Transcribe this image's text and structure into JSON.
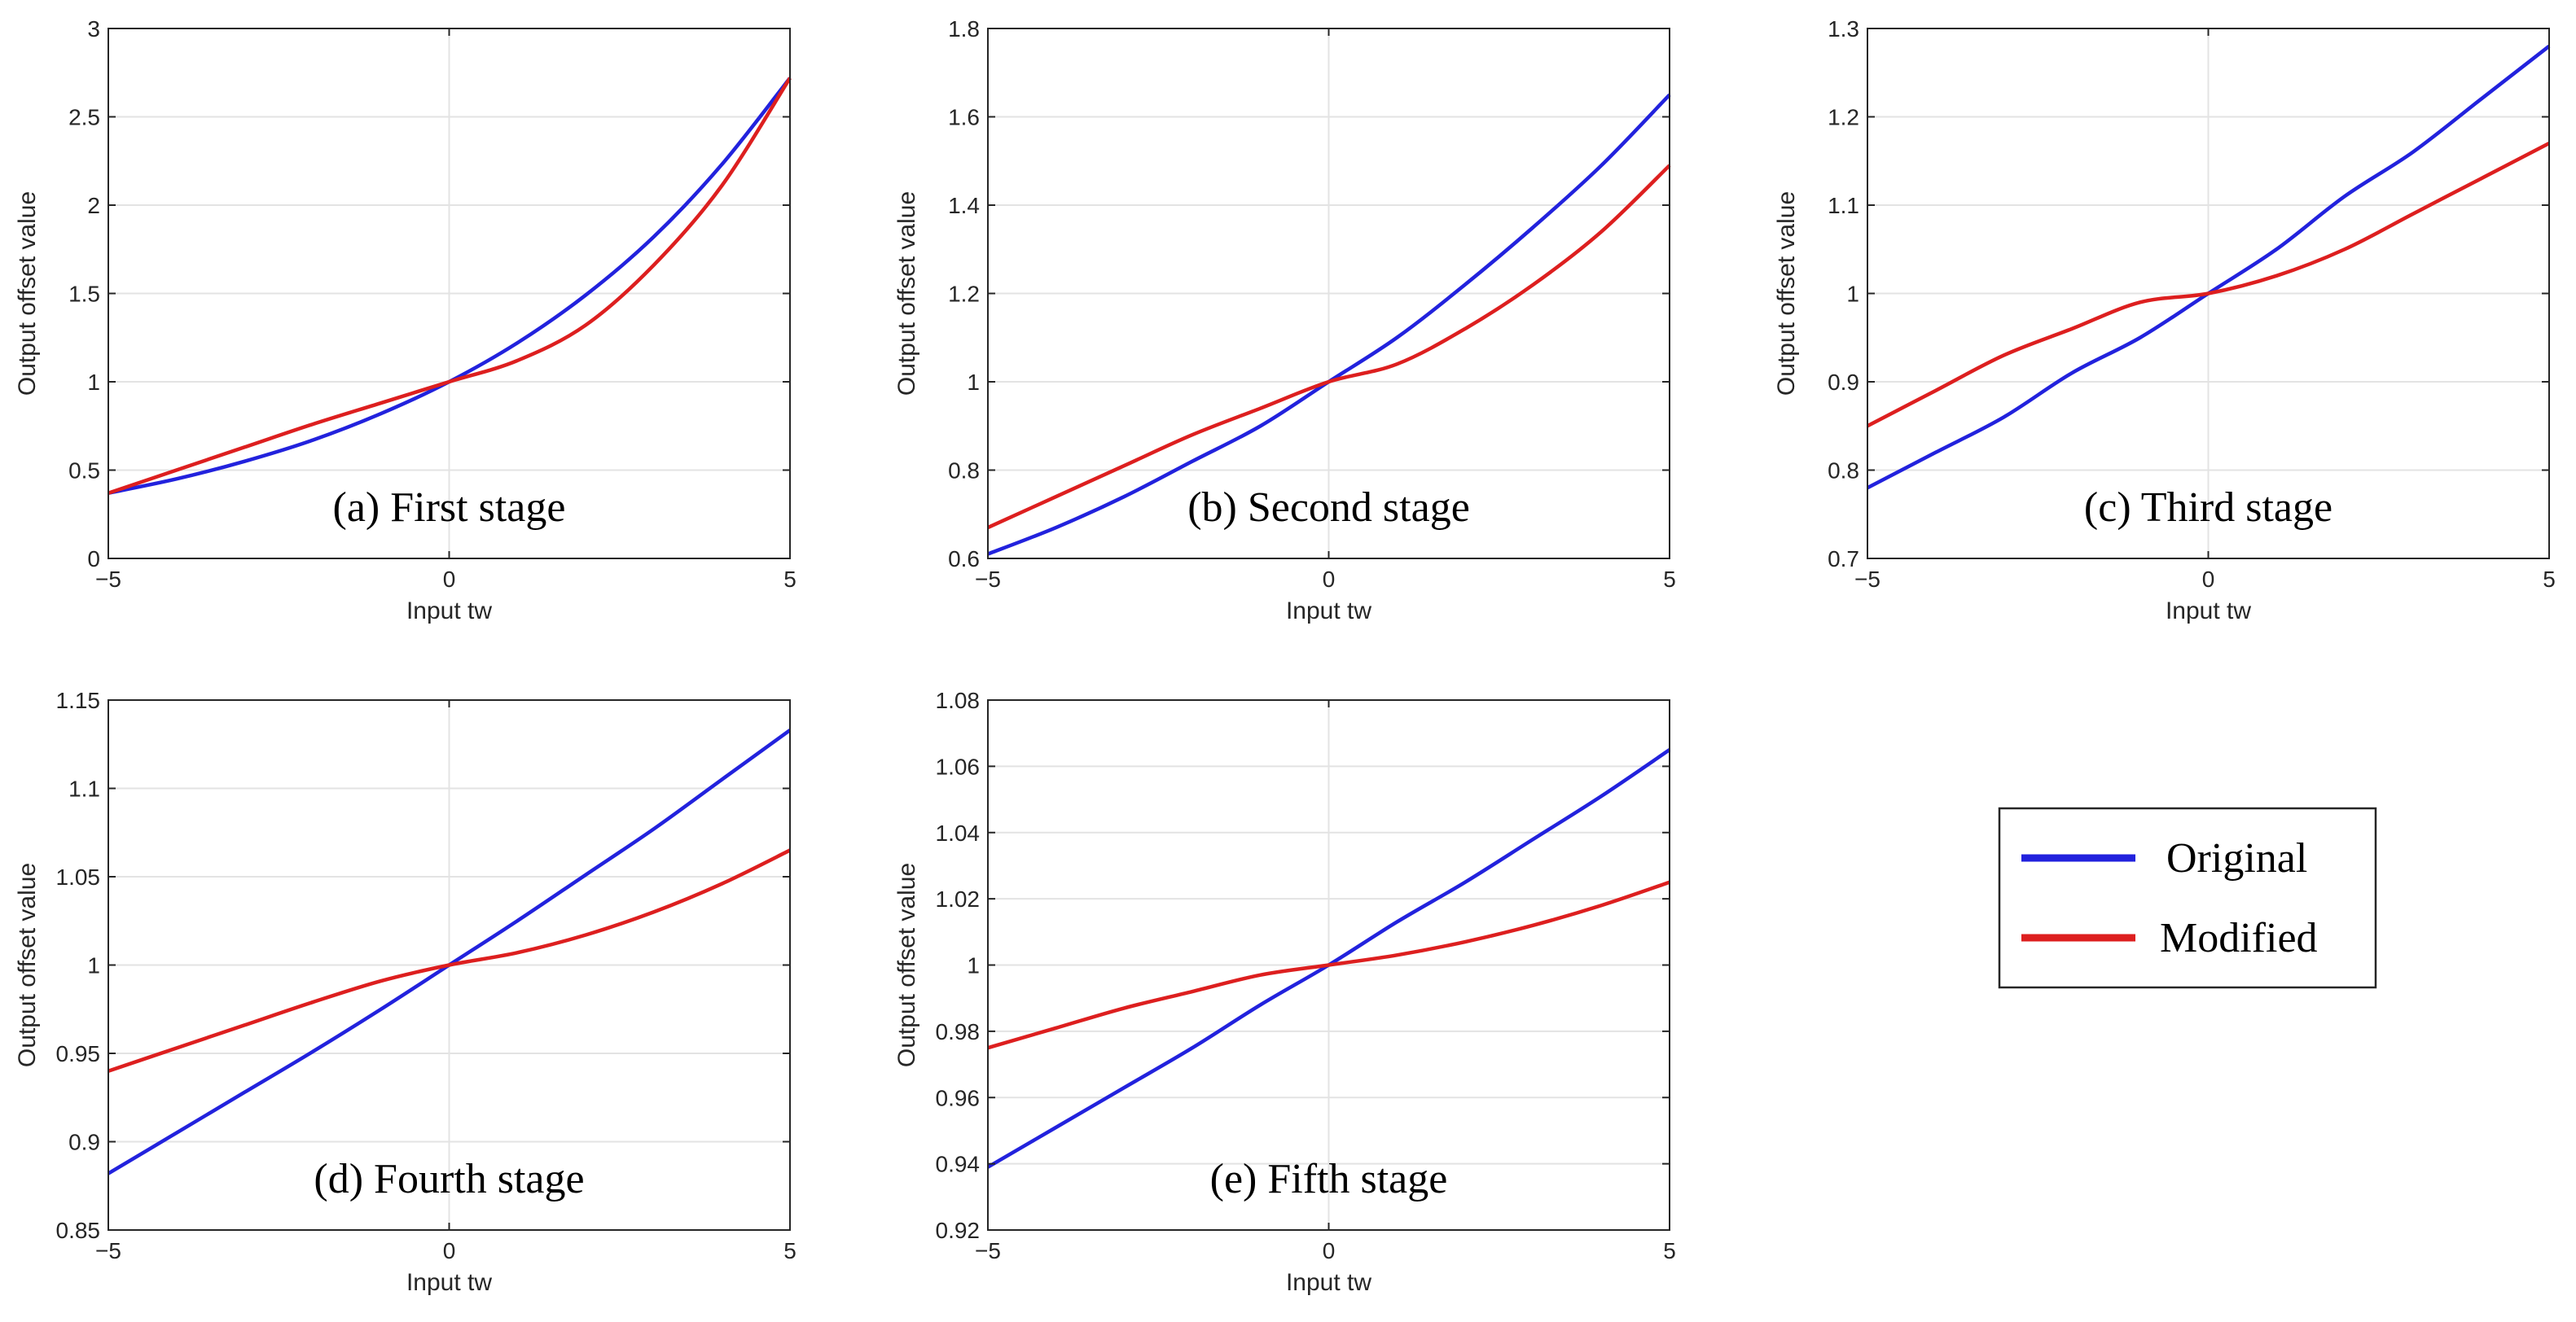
{
  "colors": {
    "original": "#2222dd",
    "modified": "#dd1f1f",
    "grid": "#e3e3e3",
    "axis": "#262626"
  },
  "legend": {
    "entries": [
      {
        "label": "Original",
        "color": "#2222dd"
      },
      {
        "label": "Modified",
        "color": "#dd1f1f"
      }
    ]
  },
  "chart_data": [
    {
      "type": "line",
      "id": "a",
      "title": "(a) First stage",
      "xlabel": "Input tw",
      "ylabel": "Output offset value",
      "xlim": [
        -5,
        5
      ],
      "ylim": [
        0,
        3
      ],
      "grid": true,
      "xticks": [
        -5,
        0,
        5
      ],
      "xtick_labels": [
        "−5",
        "0",
        "5"
      ],
      "yticks": [
        0,
        0.5,
        1,
        1.5,
        2,
        2.5,
        3
      ],
      "ytick_labels": [
        "0",
        "0.5",
        "1",
        "1.5",
        "2",
        "2.5",
        "3"
      ],
      "x": [
        -5,
        -4,
        -3,
        -2,
        -1,
        0,
        1,
        2,
        3,
        4,
        5
      ],
      "series": [
        {
          "name": "Original",
          "values": [
            0.37,
            0.45,
            0.55,
            0.67,
            0.82,
            1.0,
            1.22,
            1.49,
            1.82,
            2.23,
            2.72
          ]
        },
        {
          "name": "Modified",
          "values": [
            0.37,
            0.5,
            0.63,
            0.76,
            0.88,
            1.0,
            1.12,
            1.32,
            1.66,
            2.11,
            2.72
          ]
        }
      ]
    },
    {
      "type": "line",
      "id": "b",
      "title": "(b) Second stage",
      "xlabel": "Input tw",
      "ylabel": "Output offset value",
      "xlim": [
        -5,
        5
      ],
      "ylim": [
        0.6,
        1.8
      ],
      "grid": true,
      "xticks": [
        -5,
        0,
        5
      ],
      "xtick_labels": [
        "−5",
        "0",
        "5"
      ],
      "yticks": [
        0.6,
        0.8,
        1,
        1.2,
        1.4,
        1.6,
        1.8
      ],
      "ytick_labels": [
        "0.6",
        "0.8",
        "1",
        "1.2",
        "1.4",
        "1.6",
        "1.8"
      ],
      "x": [
        -5,
        -4,
        -3,
        -2,
        -1,
        0,
        1,
        2,
        3,
        4,
        5
      ],
      "series": [
        {
          "name": "Original",
          "values": [
            0.61,
            0.67,
            0.74,
            0.82,
            0.9,
            1.0,
            1.1,
            1.22,
            1.35,
            1.49,
            1.65
          ]
        },
        {
          "name": "Modified",
          "values": [
            0.67,
            0.74,
            0.81,
            0.88,
            0.94,
            1.0,
            1.04,
            1.12,
            1.22,
            1.34,
            1.49
          ]
        }
      ]
    },
    {
      "type": "line",
      "id": "c",
      "title": "(c) Third stage",
      "xlabel": "Input tw",
      "ylabel": "Output offset value",
      "xlim": [
        -5,
        5
      ],
      "ylim": [
        0.7,
        1.3
      ],
      "grid": true,
      "xticks": [
        -5,
        0,
        5
      ],
      "xtick_labels": [
        "−5",
        "0",
        "5"
      ],
      "yticks": [
        0.7,
        0.8,
        0.9,
        1,
        1.1,
        1.2,
        1.3
      ],
      "ytick_labels": [
        "0.7",
        "0.8",
        "0.9",
        "1",
        "1.1",
        "1.2",
        "1.3"
      ],
      "x": [
        -5,
        -4,
        -3,
        -2,
        -1,
        0,
        1,
        2,
        3,
        4,
        5
      ],
      "series": [
        {
          "name": "Original",
          "values": [
            0.78,
            0.82,
            0.86,
            0.91,
            0.95,
            1.0,
            1.05,
            1.11,
            1.16,
            1.22,
            1.28
          ]
        },
        {
          "name": "Modified",
          "values": [
            0.85,
            0.89,
            0.93,
            0.96,
            0.99,
            1.0,
            1.02,
            1.05,
            1.09,
            1.13,
            1.17
          ]
        }
      ]
    },
    {
      "type": "line",
      "id": "d",
      "title": "(d) Fourth stage",
      "xlabel": "Input tw",
      "ylabel": "Output offset value",
      "xlim": [
        -5,
        5
      ],
      "ylim": [
        0.85,
        1.15
      ],
      "grid": true,
      "xticks": [
        -5,
        0,
        5
      ],
      "xtick_labels": [
        "−5",
        "0",
        "5"
      ],
      "yticks": [
        0.85,
        0.9,
        0.95,
        1,
        1.05,
        1.1,
        1.15
      ],
      "ytick_labels": [
        "0.85",
        "0.9",
        "0.95",
        "1",
        "1.05",
        "1.1",
        "1.15"
      ],
      "x": [
        -5,
        -4,
        -3,
        -2,
        -1,
        0,
        1,
        2,
        3,
        4,
        5
      ],
      "series": [
        {
          "name": "Original",
          "values": [
            0.882,
            0.905,
            0.928,
            0.951,
            0.975,
            1.0,
            1.025,
            1.051,
            1.077,
            1.105,
            1.133
          ]
        },
        {
          "name": "Modified",
          "values": [
            0.94,
            0.953,
            0.966,
            0.979,
            0.991,
            1.0,
            1.007,
            1.017,
            1.03,
            1.046,
            1.065
          ]
        }
      ]
    },
    {
      "type": "line",
      "id": "e",
      "title": "(e) Fifth stage",
      "xlabel": "Input tw",
      "ylabel": "Output offset value",
      "xlim": [
        -5,
        5
      ],
      "ylim": [
        0.92,
        1.08
      ],
      "grid": true,
      "xticks": [
        -5,
        0,
        5
      ],
      "xtick_labels": [
        "−5",
        "0",
        "5"
      ],
      "yticks": [
        0.92,
        0.94,
        0.96,
        0.98,
        1,
        1.02,
        1.04,
        1.06,
        1.08
      ],
      "ytick_labels": [
        "0.92",
        "0.94",
        "0.96",
        "0.98",
        "1",
        "1.02",
        "1.04",
        "1.06",
        "1.08"
      ],
      "x": [
        -5,
        -4,
        -3,
        -2,
        -1,
        0,
        1,
        2,
        3,
        4,
        5
      ],
      "series": [
        {
          "name": "Original",
          "values": [
            0.939,
            0.951,
            0.963,
            0.975,
            0.988,
            1.0,
            1.013,
            1.025,
            1.038,
            1.051,
            1.065
          ]
        },
        {
          "name": "Modified",
          "values": [
            0.975,
            0.981,
            0.987,
            0.992,
            0.997,
            1.0,
            1.003,
            1.007,
            1.012,
            1.018,
            1.025
          ]
        }
      ]
    }
  ]
}
